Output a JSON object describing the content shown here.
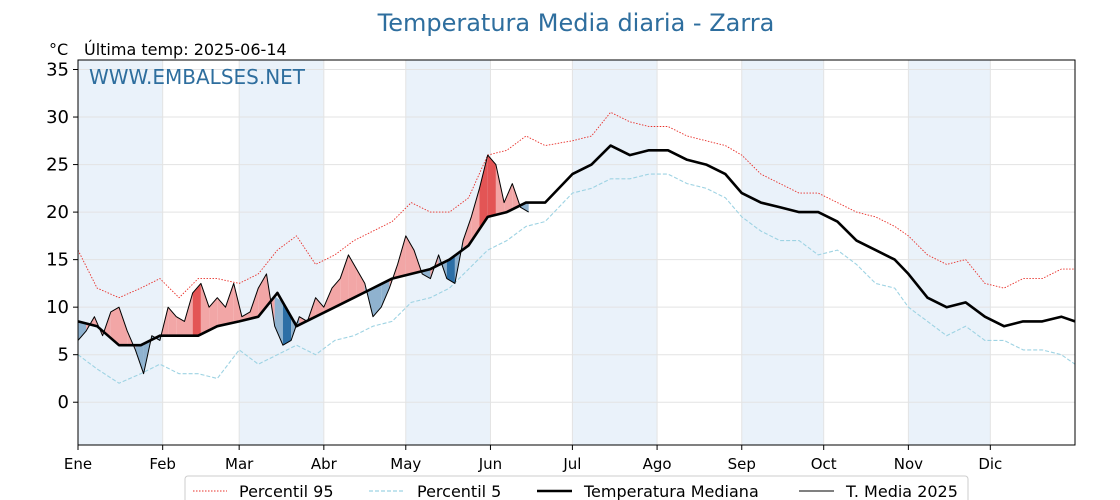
{
  "chart_data": {
    "type": "line",
    "title": "Temperatura Media diaria - Zarra",
    "unit_label": "°C",
    "last_temp_text": "Última temp: 2025-06-14",
    "watermark": "WWW.EMBALSES.NET",
    "ylim": [
      -4.5,
      36
    ],
    "y_ticks": [
      0,
      5,
      10,
      15,
      20,
      25,
      30,
      35
    ],
    "x_range": [
      1,
      366
    ],
    "months": [
      {
        "label": "Ene",
        "day": 1
      },
      {
        "label": "Feb",
        "day": 32
      },
      {
        "label": "Mar",
        "day": 60
      },
      {
        "label": "Abr",
        "day": 91
      },
      {
        "label": "May",
        "day": 121
      },
      {
        "label": "Jun",
        "day": 152
      },
      {
        "label": "Jul",
        "day": 182
      },
      {
        "label": "Ago",
        "day": 213
      },
      {
        "label": "Sep",
        "day": 244
      },
      {
        "label": "Oct",
        "day": 274
      },
      {
        "label": "Nov",
        "day": 305
      },
      {
        "label": "Dic",
        "day": 335
      }
    ],
    "grid": true,
    "legend_position": "bottom",
    "colors": {
      "p95": "#e8302a",
      "p5": "#9ed3e3",
      "median": "#000000",
      "current": "#000000",
      "above_fill": "#f2a6a6",
      "above_fill_strong": "#e35555",
      "below_fill": "#8fb2cf",
      "below_fill_strong": "#2c6fa6",
      "band": "#eaf2fa"
    },
    "series": [
      {
        "key": "p95",
        "name": "Percentil 95",
        "style": "dotted",
        "points": [
          [
            1,
            16
          ],
          [
            8,
            12
          ],
          [
            16,
            11
          ],
          [
            24,
            12
          ],
          [
            31,
            13
          ],
          [
            38,
            11
          ],
          [
            45,
            13
          ],
          [
            52,
            13
          ],
          [
            60,
            12.5
          ],
          [
            67,
            13.5
          ],
          [
            74,
            16
          ],
          [
            81,
            17.5
          ],
          [
            88,
            14.5
          ],
          [
            95,
            15.5
          ],
          [
            102,
            17
          ],
          [
            109,
            18
          ],
          [
            116,
            19
          ],
          [
            123,
            21
          ],
          [
            130,
            20
          ],
          [
            137,
            20
          ],
          [
            144,
            21.5
          ],
          [
            151,
            26
          ],
          [
            158,
            26.5
          ],
          [
            165,
            28
          ],
          [
            172,
            27
          ],
          [
            182,
            27.5
          ],
          [
            189,
            28
          ],
          [
            196,
            30.5
          ],
          [
            203,
            29.5
          ],
          [
            210,
            29
          ],
          [
            217,
            29
          ],
          [
            224,
            28
          ],
          [
            231,
            27.5
          ],
          [
            238,
            27
          ],
          [
            244,
            26
          ],
          [
            251,
            24
          ],
          [
            258,
            23
          ],
          [
            265,
            22
          ],
          [
            272,
            22
          ],
          [
            279,
            21
          ],
          [
            286,
            20
          ],
          [
            293,
            19.5
          ],
          [
            300,
            18.5
          ],
          [
            305,
            17.5
          ],
          [
            312,
            15.5
          ],
          [
            319,
            14.5
          ],
          [
            326,
            15
          ],
          [
            333,
            12.5
          ],
          [
            340,
            12
          ],
          [
            347,
            13
          ],
          [
            354,
            13
          ],
          [
            361,
            14
          ],
          [
            366,
            14
          ]
        ]
      },
      {
        "key": "p5",
        "name": "Percentil 5",
        "style": "dashed",
        "points": [
          [
            1,
            5
          ],
          [
            8,
            3.5
          ],
          [
            16,
            2
          ],
          [
            24,
            3
          ],
          [
            31,
            4
          ],
          [
            38,
            3
          ],
          [
            45,
            3
          ],
          [
            52,
            2.5
          ],
          [
            60,
            5.5
          ],
          [
            67,
            4
          ],
          [
            74,
            5
          ],
          [
            81,
            6
          ],
          [
            88,
            5
          ],
          [
            95,
            6.5
          ],
          [
            102,
            7
          ],
          [
            109,
            8
          ],
          [
            116,
            8.5
          ],
          [
            123,
            10.5
          ],
          [
            130,
            11
          ],
          [
            137,
            12
          ],
          [
            144,
            14
          ],
          [
            151,
            16
          ],
          [
            158,
            17
          ],
          [
            165,
            18.5
          ],
          [
            172,
            19
          ],
          [
            182,
            22
          ],
          [
            189,
            22.5
          ],
          [
            196,
            23.5
          ],
          [
            203,
            23.5
          ],
          [
            210,
            24
          ],
          [
            217,
            24
          ],
          [
            224,
            23
          ],
          [
            231,
            22.5
          ],
          [
            238,
            21.5
          ],
          [
            244,
            19.5
          ],
          [
            251,
            18
          ],
          [
            258,
            17
          ],
          [
            265,
            17
          ],
          [
            272,
            15.5
          ],
          [
            279,
            16
          ],
          [
            286,
            14.5
          ],
          [
            293,
            12.5
          ],
          [
            300,
            12
          ],
          [
            305,
            10
          ],
          [
            312,
            8.5
          ],
          [
            319,
            7
          ],
          [
            326,
            8
          ],
          [
            333,
            6.5
          ],
          [
            340,
            6.5
          ],
          [
            347,
            5.5
          ],
          [
            354,
            5.5
          ],
          [
            361,
            5
          ],
          [
            366,
            4
          ]
        ]
      },
      {
        "key": "median",
        "name": "Temperatura Mediana",
        "style": "solid-thick",
        "points": [
          [
            1,
            8.5
          ],
          [
            8,
            8
          ],
          [
            16,
            6
          ],
          [
            24,
            6
          ],
          [
            31,
            7
          ],
          [
            38,
            7
          ],
          [
            45,
            7
          ],
          [
            52,
            8
          ],
          [
            60,
            8.5
          ],
          [
            67,
            9
          ],
          [
            74,
            11.5
          ],
          [
            81,
            8
          ],
          [
            88,
            9
          ],
          [
            95,
            10
          ],
          [
            102,
            11
          ],
          [
            109,
            12
          ],
          [
            116,
            13
          ],
          [
            123,
            13.5
          ],
          [
            130,
            14
          ],
          [
            137,
            15
          ],
          [
            144,
            16.5
          ],
          [
            151,
            19.5
          ],
          [
            158,
            20
          ],
          [
            165,
            21
          ],
          [
            172,
            21
          ],
          [
            182,
            24
          ],
          [
            189,
            25
          ],
          [
            196,
            27
          ],
          [
            203,
            26
          ],
          [
            210,
            26.5
          ],
          [
            217,
            26.5
          ],
          [
            224,
            25.5
          ],
          [
            231,
            25
          ],
          [
            238,
            24
          ],
          [
            244,
            22
          ],
          [
            251,
            21
          ],
          [
            258,
            20.5
          ],
          [
            265,
            20
          ],
          [
            272,
            20
          ],
          [
            279,
            19
          ],
          [
            286,
            17
          ],
          [
            293,
            16
          ],
          [
            300,
            15
          ],
          [
            305,
            13.5
          ],
          [
            312,
            11
          ],
          [
            319,
            10
          ],
          [
            326,
            10.5
          ],
          [
            333,
            9
          ],
          [
            340,
            8
          ],
          [
            347,
            8.5
          ],
          [
            354,
            8.5
          ],
          [
            361,
            9
          ],
          [
            366,
            8.5
          ]
        ]
      },
      {
        "key": "current",
        "name": "T. Media 2025",
        "style": "solid-thin",
        "points": [
          [
            1,
            6.5
          ],
          [
            4,
            7.5
          ],
          [
            7,
            9
          ],
          [
            10,
            7
          ],
          [
            13,
            9.5
          ],
          [
            16,
            10
          ],
          [
            19,
            7.5
          ],
          [
            22,
            5.5
          ],
          [
            25,
            3
          ],
          [
            28,
            7
          ],
          [
            31,
            6.5
          ],
          [
            34,
            10
          ],
          [
            37,
            9
          ],
          [
            40,
            8.5
          ],
          [
            43,
            11.5
          ],
          [
            46,
            12.5
          ],
          [
            49,
            10
          ],
          [
            52,
            11
          ],
          [
            55,
            10
          ],
          [
            58,
            12.5
          ],
          [
            61,
            9
          ],
          [
            64,
            9.5
          ],
          [
            67,
            12
          ],
          [
            70,
            13.5
          ],
          [
            73,
            8
          ],
          [
            76,
            6
          ],
          [
            79,
            6.5
          ],
          [
            82,
            9
          ],
          [
            85,
            8.5
          ],
          [
            88,
            11
          ],
          [
            91,
            10
          ],
          [
            94,
            12
          ],
          [
            97,
            13
          ],
          [
            100,
            15.5
          ],
          [
            103,
            14
          ],
          [
            106,
            12.5
          ],
          [
            109,
            9
          ],
          [
            112,
            10
          ],
          [
            115,
            12
          ],
          [
            118,
            14.5
          ],
          [
            121,
            17.5
          ],
          [
            124,
            16
          ],
          [
            127,
            13.5
          ],
          [
            130,
            13
          ],
          [
            133,
            15.5
          ],
          [
            136,
            13
          ],
          [
            139,
            12.5
          ],
          [
            142,
            17
          ],
          [
            145,
            19.5
          ],
          [
            148,
            22.5
          ],
          [
            151,
            26
          ],
          [
            154,
            25
          ],
          [
            157,
            21
          ],
          [
            160,
            23
          ],
          [
            163,
            20.5
          ],
          [
            166,
            20
          ]
        ]
      }
    ]
  },
  "legend": {
    "items": [
      {
        "label": "Percentil 95"
      },
      {
        "label": "Percentil 5"
      },
      {
        "label": "Temperatura Mediana"
      },
      {
        "label": "T. Media 2025"
      }
    ]
  }
}
